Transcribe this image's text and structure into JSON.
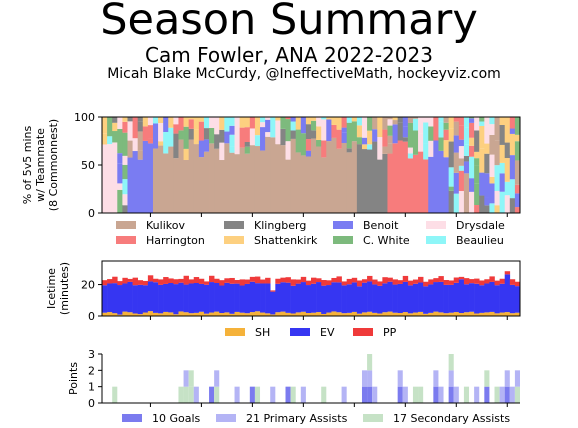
{
  "header": {
    "title": "Season Summary",
    "subtitle": "Cam Fowler, ANA 2022-2023",
    "byline": "Micah Blake McCurdy, @IneffectiveMath, hockeyviz.com"
  },
  "chart_data": [
    {
      "type": "area",
      "ylabel": "% of 5v5 mins w/ Teammate (8 Commonnest)",
      "ylabel_lines": [
        "% of 5v5 mins",
        "w/ Teammate",
        "(8 Commonnest)"
      ],
      "yticks": [
        0,
        50,
        100
      ],
      "ylim": [
        0,
        100
      ],
      "games": 82,
      "legend_cols": 4,
      "series": [
        {
          "name": "Kulikov",
          "color": "#c9a692"
        },
        {
          "name": "Klingberg",
          "color": "#848484"
        },
        {
          "name": "Benoit",
          "color": "#7a7cf2"
        },
        {
          "name": "Drysdale",
          "color": "#fddee6"
        },
        {
          "name": "Harrington",
          "color": "#f77c7c"
        },
        {
          "name": "Shattenkirk",
          "color": "#fdd080"
        },
        {
          "name": "C. White",
          "color": "#7dba7d"
        },
        {
          "name": "Beaulieu",
          "color": "#8ef6f8"
        }
      ],
      "segments": [
        {
          "player": "Drysdale",
          "start": 1,
          "end": 3
        },
        {
          "player": "Benoit",
          "start": 6,
          "end": 10
        },
        {
          "player": "Kulikov",
          "start": 11,
          "end": 50
        },
        {
          "player": "Harrington",
          "start": 51,
          "end": 64
        },
        {
          "player": "Klingberg",
          "start": 51,
          "end": 56
        },
        {
          "player": "Benoit",
          "start": 65,
          "end": 68
        }
      ]
    },
    {
      "type": "bar",
      "ylabel": "Icetime (minutes)",
      "ylabel_lines": [
        "Icetime",
        "(minutes)"
      ],
      "yticks": [
        0,
        20
      ],
      "ylim": [
        0,
        35
      ],
      "games": 82,
      "series": [
        {
          "name": "SH",
          "color": "#f5b23a",
          "values": [
            2.1,
            2.5,
            1.8,
            0.9,
            2.8,
            2.4,
            1.6,
            1.2,
            2.2,
            3.1,
            2.0,
            1.7,
            2.6,
            2.3,
            1.1,
            2.9,
            2.4,
            1.8,
            2.0,
            2.7,
            1.5,
            2.2,
            2.8,
            1.9,
            2.3,
            1.4,
            2.6,
            2.1,
            1.8,
            2.5,
            3.0,
            2.2,
            1.7,
            1.0,
            2.4,
            2.8,
            2.0,
            1.6,
            2.3,
            2.7,
            1.9,
            2.1,
            2.5,
            1.3,
            2.2,
            2.9,
            2.4,
            1.8,
            2.0,
            2.6,
            1.5,
            2.3,
            2.7,
            2.0,
            1.6,
            2.4,
            2.8,
            2.1,
            1.9,
            2.5,
            1.7,
            2.2,
            2.6,
            1.4,
            2.0,
            2.8,
            2.3,
            1.8,
            2.1,
            2.5,
            1.9,
            2.4,
            2.7,
            1.6,
            2.0,
            2.3,
            2.6,
            1.7,
            2.2,
            2.5,
            1.8,
            2.1
          ]
        },
        {
          "name": "EV",
          "color": "#3636f2",
          "values": [
            17.5,
            18.2,
            19.1,
            18.8,
            17.9,
            19.3,
            18.0,
            18.6,
            17.4,
            18.9,
            19.5,
            18.1,
            17.8,
            18.7,
            19.2,
            18.3,
            17.6,
            18.9,
            19.0,
            17.7,
            18.4,
            19.4,
            18.2,
            17.5,
            18.8,
            19.1,
            18.0,
            17.3,
            18.6,
            19.3,
            17.9,
            18.5,
            19.0,
            14.5,
            18.1,
            18.7,
            19.2,
            17.6,
            18.3,
            18.9,
            17.8,
            18.4,
            19.1,
            18.0,
            17.5,
            18.6,
            19.0,
            17.7,
            18.2,
            18.8,
            17.4,
            18.9,
            19.3,
            18.1,
            17.6,
            18.4,
            19.0,
            17.9,
            18.5,
            19.2,
            17.8,
            18.3,
            18.7,
            17.5,
            18.1,
            18.8,
            19.4,
            18.0,
            17.7,
            18.6,
            21.5,
            17.8,
            18.2,
            18.9,
            17.6,
            18.4,
            19.1,
            17.9,
            18.3,
            24.0,
            18.0,
            16.9
          ]
        },
        {
          "name": "PP",
          "color": "#ef3a3a",
          "values": [
            3.2,
            2.8,
            4.1,
            2.5,
            3.6,
            1.9,
            4.8,
            3.0,
            2.7,
            3.9,
            2.2,
            3.5,
            4.4,
            2.9,
            3.1,
            2.4,
            5.6,
            2.6,
            3.8,
            3.3,
            2.1,
            4.0,
            2.7,
            3.4,
            2.9,
            3.7,
            2.3,
            3.9,
            2.8,
            3.1,
            4.2,
            2.5,
            3.6,
            0.8,
            3.2,
            2.9,
            3.5,
            4.1,
            2.6,
            3.3,
            2.8,
            3.9,
            2.4,
            3.6,
            3.0,
            2.7,
            3.8,
            2.5,
            3.4,
            2.9,
            3.7,
            2.2,
            3.5,
            3.1,
            2.8,
            3.9,
            2.6,
            3.3,
            2.4,
            3.8,
            3.0,
            2.7,
            3.6,
            2.9,
            3.2,
            2.5,
            3.7,
            3.1,
            2.8,
            3.4,
            1.5,
            3.9,
            2.6,
            3.3,
            3.0,
            2.7,
            3.5,
            2.9,
            3.2,
            2.0,
            3.6,
            2.8
          ]
        }
      ]
    },
    {
      "type": "bar",
      "ylabel": "Points",
      "yticks": [
        0,
        1,
        2,
        3
      ],
      "ylim": [
        0,
        3
      ],
      "games": 82,
      "series": [
        {
          "name": "Goals",
          "color": "#7b7bef",
          "total": 10,
          "legend": "10 Goals"
        },
        {
          "name": "Primary Assists",
          "color": "#b4b4f5",
          "total": 21,
          "legend": "21 Primary Assists"
        },
        {
          "name": "Secondary Assists",
          "color": "#c6e2c6",
          "total": 17,
          "legend": "17 Secondary Assists"
        }
      ],
      "events": [
        {
          "game": 3,
          "type": "Secondary Assists"
        },
        {
          "game": 16,
          "type": "Secondary Assists"
        },
        {
          "game": 17,
          "type": "Secondary Assists"
        },
        {
          "game": 17,
          "type": "Primary Assists"
        },
        {
          "game": 18,
          "type": "Secondary Assists"
        },
        {
          "game": 18,
          "type": "Secondary Assists"
        },
        {
          "game": 19,
          "type": "Primary Assists"
        },
        {
          "game": 22,
          "type": "Goals"
        },
        {
          "game": 23,
          "type": "Secondary Assists"
        },
        {
          "game": 23,
          "type": "Primary Assists"
        },
        {
          "game": 27,
          "type": "Primary Assists"
        },
        {
          "game": 30,
          "type": "Goals"
        },
        {
          "game": 31,
          "type": "Secondary Assists"
        },
        {
          "game": 34,
          "type": "Primary Assists"
        },
        {
          "game": 37,
          "type": "Goals"
        },
        {
          "game": 38,
          "type": "Secondary Assists"
        },
        {
          "game": 40,
          "type": "Primary Assists"
        },
        {
          "game": 44,
          "type": "Secondary Assists"
        },
        {
          "game": 48,
          "type": "Primary Assists"
        },
        {
          "game": 52,
          "type": "Goals"
        },
        {
          "game": 52,
          "type": "Primary Assists"
        },
        {
          "game": 53,
          "type": "Goals"
        },
        {
          "game": 53,
          "type": "Primary Assists"
        },
        {
          "game": 53,
          "type": "Secondary Assists"
        },
        {
          "game": 54,
          "type": "Primary Assists"
        },
        {
          "game": 59,
          "type": "Goals"
        },
        {
          "game": 59,
          "type": "Primary Assists"
        },
        {
          "game": 60,
          "type": "Primary Assists"
        },
        {
          "game": 62,
          "type": "Secondary Assists"
        },
        {
          "game": 63,
          "type": "Secondary Assists"
        },
        {
          "game": 66,
          "type": "Goals"
        },
        {
          "game": 66,
          "type": "Primary Assists"
        },
        {
          "game": 67,
          "type": "Primary Assists"
        },
        {
          "game": 69,
          "type": "Goals"
        },
        {
          "game": 69,
          "type": "Primary Assists"
        },
        {
          "game": 69,
          "type": "Secondary Assists"
        },
        {
          "game": 70,
          "type": "Primary Assists"
        },
        {
          "game": 72,
          "type": "Secondary Assists"
        },
        {
          "game": 74,
          "type": "Primary Assists"
        },
        {
          "game": 76,
          "type": "Goals"
        },
        {
          "game": 76,
          "type": "Secondary Assists"
        },
        {
          "game": 78,
          "type": "Secondary Assists"
        },
        {
          "game": 79,
          "type": "Primary Assists"
        },
        {
          "game": 80,
          "type": "Goals"
        },
        {
          "game": 80,
          "type": "Primary Assists"
        },
        {
          "game": 81,
          "type": "Primary Assists"
        },
        {
          "game": 82,
          "type": "Secondary Assists"
        },
        {
          "game": 82,
          "type": "Primary Assists"
        }
      ]
    }
  ]
}
